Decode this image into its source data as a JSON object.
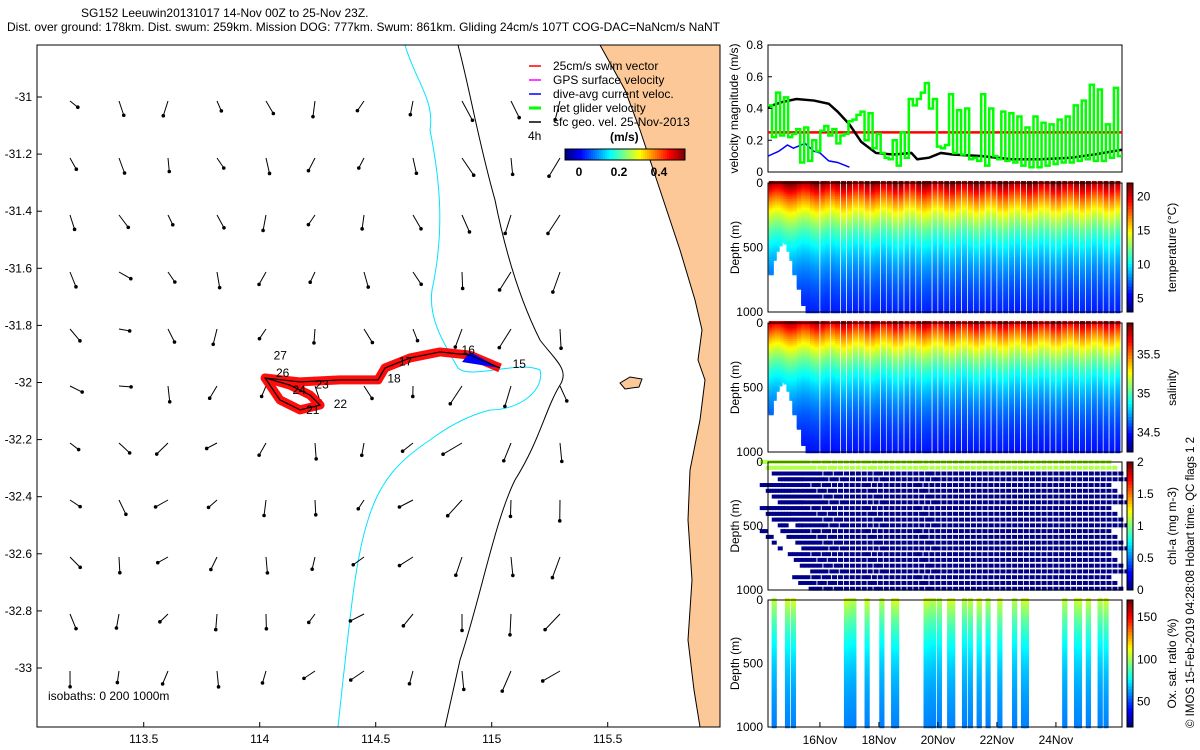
{
  "title": {
    "line1": "SG152 Leeuwin20131017 14-Nov 00Z to 25-Nov 23Z.",
    "line2": "Dist. over ground: 178km. Dist. swum: 259km. Mission DOG: 777km. Swum: 861km. Gliding 24cm/s 107T COG-DAC=NaNcm/s NaNT"
  },
  "colors": {
    "land": "#fdc897",
    "swim": "#ff0000",
    "gps": "#ff00ff",
    "dac": "#0000ff",
    "net": "#00ff00",
    "sfc": "#000000",
    "isobath200": "#00e5ff"
  },
  "chart_data": [
    {
      "type": "map",
      "xlim": [
        113.04,
        115.99
      ],
      "ylim": [
        -33.21,
        -30.82
      ],
      "xticks": [
        "113.5",
        "114",
        "114.5",
        "115",
        "115.5"
      ],
      "xtick_values": [
        113.5,
        114,
        114.5,
        115,
        115.5
      ],
      "yticks": [
        "-31",
        "-31.2",
        "-31.4",
        "-31.6",
        "-31.8",
        "-32",
        "-32.2",
        "-32.4",
        "-32.6",
        "-32.8",
        "-33"
      ],
      "ytick_values": [
        -31,
        -31.2,
        -31.4,
        -31.6,
        -31.8,
        -32,
        -32.2,
        -32.4,
        -32.6,
        -32.8,
        -33
      ],
      "legend": [
        "25cm/s swim vector",
        "GPS surface velocity",
        "dive-avg current veloc.",
        "net glider velocity",
        "sfc geo. vel. 25-Nov-2013"
      ],
      "legend_extra": {
        "left": "4h",
        "unit": "(m/s)"
      },
      "colorbar": {
        "ticks": [
          "0",
          "0.2",
          "0.4"
        ],
        "values": [
          0,
          0.2,
          0.4
        ],
        "range": [
          -0.07,
          0.53
        ]
      },
      "isobath_label": "isobaths: 0   200  1000m",
      "track": [
        [
          115.036,
          -31.949
        ],
        [
          114.906,
          -31.904
        ],
        [
          114.777,
          -31.893
        ],
        [
          114.648,
          -31.914
        ],
        [
          114.54,
          -31.949
        ],
        [
          114.51,
          -31.991
        ],
        [
          114.346,
          -31.991
        ],
        [
          114.174,
          -31.998
        ],
        [
          114.023,
          -31.984
        ],
        [
          114.087,
          -32.061
        ],
        [
          114.174,
          -32.096
        ],
        [
          114.26,
          -32.079
        ],
        [
          114.217,
          -32.044
        ],
        [
          114.13,
          -32.009
        ],
        [
          114.023,
          -31.984
        ]
      ],
      "day_labels": [
        {
          "t": "15",
          "lon": 115.09,
          "lat": -31.95
        },
        {
          "t": "16",
          "lon": 114.87,
          "lat": -31.9
        },
        {
          "t": "17",
          "lon": 114.6,
          "lat": -31.94
        },
        {
          "t": "18",
          "lon": 114.55,
          "lat": -32.0
        },
        {
          "t": "21",
          "lon": 114.2,
          "lat": -32.11
        },
        {
          "t": "22",
          "lon": 114.25,
          "lat": -32.09
        },
        {
          "t": "23",
          "lon": 114.24,
          "lat": -32.07
        },
        {
          "t": "24",
          "lon": 114.21,
          "lat": -32.04
        },
        {
          "t": "26",
          "lon": 114.07,
          "lat": -31.98
        },
        {
          "t": "27",
          "lon": 114.06,
          "lat": -31.92
        }
      ]
    },
    {
      "type": "line",
      "ylabel": "velocity magnitude (m/s)",
      "ylim": [
        0,
        0.8
      ],
      "xlim": [
        14.24,
        26.24
      ],
      "yticks": [
        "0",
        "0.2",
        "0.4",
        "0.6",
        "0.8"
      ],
      "ytick_values": [
        0,
        0.2,
        0.4,
        0.6,
        0.8
      ],
      "series": [
        {
          "name": "swim",
          "color": "#ff0000",
          "points": [
            [
              14.24,
              0.25
            ],
            [
              26.24,
              0.25
            ]
          ]
        },
        {
          "name": "sfc geo",
          "color": "#000000",
          "points": [
            [
              14.24,
              0.41
            ],
            [
              14.7,
              0.44
            ],
            [
              15.2,
              0.46
            ],
            [
              15.8,
              0.45
            ],
            [
              16.3,
              0.43
            ],
            [
              16.6,
              0.38
            ],
            [
              17,
              0.3
            ],
            [
              17.4,
              0.19
            ],
            [
              17.9,
              0.12
            ],
            [
              18.5,
              0.11
            ],
            [
              19.1,
              0.12
            ],
            [
              19.3,
              0.08
            ],
            [
              19.7,
              0.09
            ],
            [
              20.1,
              0.12
            ],
            [
              20.5,
              0.11
            ],
            [
              21.5,
              0.1
            ],
            [
              22.5,
              0.08
            ],
            [
              23.5,
              0.08
            ],
            [
              24.5,
              0.09
            ],
            [
              25.3,
              0.11
            ],
            [
              26.24,
              0.14
            ]
          ]
        },
        {
          "name": "dive-avg",
          "color": "#0000ff",
          "points": [
            [
              14.24,
              0.1
            ],
            [
              14.6,
              0.13
            ],
            [
              14.9,
              0.17
            ],
            [
              15.1,
              0.15
            ],
            [
              15.5,
              0.18
            ],
            [
              15.8,
              0.13
            ],
            [
              16,
              0.12
            ],
            [
              16.3,
              0.07
            ],
            [
              16.6,
              0.06
            ],
            [
              17,
              0.03
            ]
          ]
        },
        {
          "name": "net",
          "color": "#00ff00",
          "values": [
            0.42,
            0.22,
            0.5,
            0.23,
            0.47,
            0.22,
            0.24,
            0.27,
            0.06,
            0.28,
            0.07,
            0.2,
            0.13,
            0.26,
            0.29,
            0.23,
            0.27,
            0.18,
            0.23,
            0.24,
            0.32,
            0.33,
            0.36,
            0.38,
            0.2,
            0.37,
            0.15,
            0.24,
            0.12,
            0.09,
            0.08,
            0.2,
            0.04,
            0.25,
            0.09,
            0.46,
            0.42,
            0.46,
            0.5,
            0.56,
            0.4,
            0.46,
            0.16,
            0.15,
            0.17,
            0.49,
            0.12,
            0.39,
            0.11,
            0.4,
            0.08,
            0.09,
            0.07,
            0.49,
            0.04,
            0.4,
            0.1,
            0.08,
            0.38,
            0.07,
            0.37,
            0.06,
            0.35,
            0.04,
            0.28,
            0.03,
            0.35,
            0.03,
            0.31,
            0.04,
            0.3,
            0.05,
            0.33,
            0.06,
            0.35,
            0.06,
            0.42,
            0.07,
            0.45,
            0.08,
            0.55,
            0.07,
            0.52,
            0.07,
            0.3,
            0.09,
            0.53,
            0.1
          ]
        }
      ]
    },
    {
      "type": "scatter",
      "name": "temperature",
      "cblabel": "temperature (°C)",
      "range": [
        3,
        22
      ],
      "cbticks": [
        "5",
        "10",
        "15",
        "20"
      ],
      "cbvalues": [
        5,
        10,
        15,
        20
      ],
      "ylabel": "Depth (m)",
      "yticks": [
        "0",
        "500",
        "1000"
      ]
    },
    {
      "type": "scatter",
      "name": "salinity",
      "cblabel": "salinity",
      "range": [
        34.25,
        35.9
      ],
      "cbticks": [
        "34.5",
        "35",
        "35.5"
      ],
      "cbvalues": [
        34.5,
        35,
        35.5
      ],
      "ylabel": "Depth (m)",
      "yticks": [
        "0",
        "500",
        "1000"
      ]
    },
    {
      "type": "scatter",
      "name": "chl",
      "cblabel": "chl-a (mg m-3)",
      "range": [
        0,
        2
      ],
      "cbticks": [
        "0",
        "0.5",
        "1",
        "1.5",
        "2"
      ],
      "cbvalues": [
        0,
        0.5,
        1,
        1.5,
        2
      ],
      "ylabel": "Depth (m)",
      "yticks": [
        "0",
        "500",
        "1000"
      ]
    },
    {
      "type": "scatter",
      "name": "oxygen",
      "cblabel": "Ox. sat. ratio (%)",
      "range": [
        20,
        170
      ],
      "cbticks": [
        "50",
        "100",
        "150"
      ],
      "cbvalues": [
        50,
        100,
        150
      ],
      "ylabel": "Depth (m)",
      "yticks": [
        "0",
        "500",
        "1000"
      ]
    }
  ],
  "time_axis": {
    "labels": [
      "16Nov",
      "18Nov",
      "20Nov",
      "22Nov",
      "24Nov"
    ],
    "values": [
      16,
      18,
      20,
      22,
      24
    ]
  },
  "dives": [
    [
      14.35,
      700
    ],
    [
      14.45,
      600
    ],
    [
      14.55,
      520
    ],
    [
      14.65,
      480
    ],
    [
      14.75,
      450
    ],
    [
      14.85,
      470
    ],
    [
      14.95,
      520
    ],
    [
      15.05,
      600
    ],
    [
      15.15,
      700
    ],
    [
      15.3,
      820
    ],
    [
      15.45,
      950
    ],
    [
      15.6,
      1000
    ],
    [
      15.75,
      1000
    ],
    [
      15.9,
      1000
    ],
    [
      16.1,
      1000
    ],
    [
      16.25,
      1000
    ],
    [
      16.45,
      1000
    ],
    [
      16.6,
      1000
    ],
    [
      16.8,
      1000
    ],
    [
      17,
      1000
    ],
    [
      17.2,
      1000
    ],
    [
      17.4,
      1000
    ],
    [
      17.6,
      1000
    ],
    [
      17.8,
      1000
    ],
    [
      17.95,
      1000
    ],
    [
      18.15,
      1000
    ],
    [
      18.35,
      1000
    ],
    [
      18.55,
      1000
    ],
    [
      18.75,
      1000
    ],
    [
      18.95,
      1000
    ],
    [
      19.15,
      1000
    ],
    [
      19.35,
      1000
    ],
    [
      19.55,
      1000
    ],
    [
      19.7,
      1000
    ],
    [
      19.9,
      1000
    ],
    [
      20.1,
      1000
    ],
    [
      20.3,
      1000
    ],
    [
      20.5,
      1000
    ],
    [
      20.7,
      1000
    ],
    [
      20.9,
      1000
    ],
    [
      21.1,
      1000
    ],
    [
      21.3,
      1000
    ],
    [
      21.5,
      1000
    ],
    [
      21.7,
      1000
    ],
    [
      21.9,
      1000
    ],
    [
      22.1,
      1000
    ],
    [
      22.3,
      1000
    ],
    [
      22.5,
      1000
    ],
    [
      22.7,
      1000
    ],
    [
      22.9,
      1000
    ],
    [
      23.1,
      1000
    ],
    [
      23.3,
      1000
    ],
    [
      23.5,
      1000
    ],
    [
      23.7,
      1000
    ],
    [
      23.9,
      1000
    ],
    [
      24.1,
      1000
    ],
    [
      24.3,
      1000
    ],
    [
      24.5,
      1000
    ],
    [
      24.7,
      1000
    ],
    [
      24.9,
      1000
    ],
    [
      25.1,
      1000
    ],
    [
      25.3,
      1000
    ],
    [
      25.5,
      1000
    ],
    [
      25.7,
      1000
    ],
    [
      25.9,
      1000
    ],
    [
      26.1,
      1000
    ]
  ],
  "ox_dives": [
    14.45,
    14.9,
    15.1,
    16.9,
    17.05,
    17.15,
    17.6,
    18.1,
    18.5,
    18.6,
    19.6,
    19.75,
    19.85,
    20.05,
    20.4,
    20.5,
    20.9,
    21.1,
    21.4,
    21.7,
    22.1,
    22.6,
    22.9,
    23.0,
    24.3,
    24.7,
    24.8,
    25.1,
    25.5,
    25.7
  ],
  "credit": "© IMOS 15-Feb-2019 04:28:08 Hobart time. QC flags 1  2"
}
